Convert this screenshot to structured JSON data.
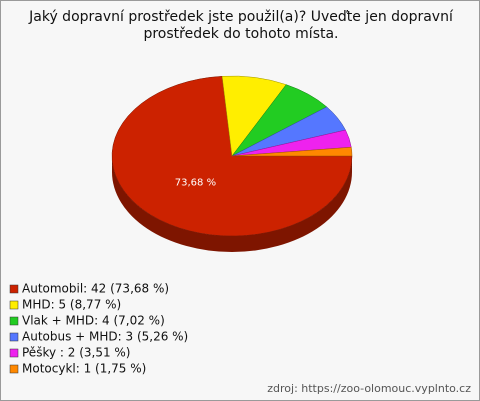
{
  "chart_data": {
    "type": "pie",
    "title": "Jaký dopravní prostředek jste použil(a)? Uveďte jen dopravní prostředek do tohoto místa.",
    "labels": [
      "Automobil: 42 (73,68 %)",
      "MHD: 5 (8,77 %)",
      "Vlak + MHD: 4 (7,02 %)",
      "Autobus + MHD: 3 (5,26 %)",
      "Pěšky : 2 (3,51 %)",
      "Motocykl: 1 (1,75 %)"
    ],
    "values": [
      73.68,
      8.77,
      7.02,
      5.26,
      3.51,
      1.75
    ],
    "value_labels": [
      "73,68 %",
      null,
      null,
      null,
      null,
      null
    ],
    "colors": [
      "#cc2200",
      "#ffee00",
      "#22cc22",
      "#5577ff",
      "#ee22ee",
      "#ff8800"
    ],
    "source": "zdroj: https://zoo-olomouc.vyplnto.cz"
  }
}
